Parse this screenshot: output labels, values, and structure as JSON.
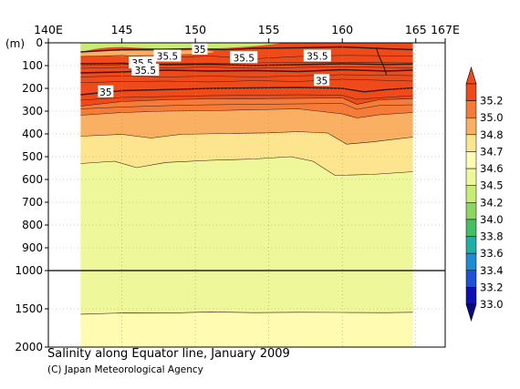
{
  "title": "Salinity along Equator line, January 2009",
  "credit": "(C) Japan Meteorological Agency",
  "chart_data": {
    "type": "heatmap",
    "x_ticks": [
      "140E",
      "145",
      "150",
      "155",
      "160",
      "165",
      "167E"
    ],
    "x_tick_values": [
      140,
      145,
      150,
      155,
      160,
      165,
      167
    ],
    "xlim": [
      140,
      167
    ],
    "data_xlim": [
      142.2,
      164.8
    ],
    "depth_unit": "(m)",
    "y_ticks_upper": [
      "0",
      "100",
      "200",
      "300",
      "400",
      "500",
      "600",
      "700",
      "800",
      "900",
      "1000"
    ],
    "y_ticks_lower": [
      "1500",
      "2000"
    ],
    "ylim_upper": [
      0,
      1000
    ],
    "ylim_lower": [
      1000,
      2000
    ],
    "grid": true,
    "colorbar_labels": [
      "35.2",
      "35.0",
      "34.8",
      "34.7",
      "34.6",
      "34.5",
      "34.2",
      "34.0",
      "33.8",
      "33.6",
      "33.4",
      "33.2",
      "33.0"
    ],
    "colorbar_colors": [
      "#ee4a1a",
      "#f47b38",
      "#f9b062",
      "#fde58f",
      "#fffbb0",
      "#eef79a",
      "#c9ec74",
      "#8ed65e",
      "#42c064",
      "#1eb0a7",
      "#1e8bd6",
      "#1d51d8",
      "#0f10b3"
    ],
    "contour_labels": [
      {
        "text": "35",
        "lon": 150.3,
        "depth": 28
      },
      {
        "text": "35.5",
        "lon": 148.1,
        "depth": 58
      },
      {
        "text": "35.5",
        "lon": 153.3,
        "depth": 65
      },
      {
        "text": "35.5",
        "lon": 158.3,
        "depth": 58
      },
      {
        "text": "35.5",
        "lon": 146.4,
        "depth": 88
      },
      {
        "text": "35.5",
        "lon": 146.6,
        "depth": 120
      },
      {
        "text": "35",
        "lon": 158.6,
        "depth": 165
      },
      {
        "text": "35",
        "lon": 143.9,
        "depth": 215
      }
    ],
    "boundaries": {
      "b35_2": [
        [
          142.2,
          100
        ],
        [
          145,
          96
        ],
        [
          148,
          92
        ],
        [
          151,
          90
        ],
        [
          154,
          88
        ],
        [
          157,
          86
        ],
        [
          160,
          85
        ],
        [
          163,
          87
        ],
        [
          164.8,
          88
        ]
      ],
      "b35_0": [
        [
          142.2,
          278
        ],
        [
          145,
          258
        ],
        [
          148,
          250
        ],
        [
          151,
          246
        ],
        [
          154,
          245
        ],
        [
          157,
          244
        ],
        [
          160,
          242
        ],
        [
          161,
          270
        ],
        [
          162.5,
          250
        ],
        [
          164.8,
          245
        ]
      ],
      "b34_8": [
        [
          142.2,
          318
        ],
        [
          145,
          306
        ],
        [
          148,
          300
        ],
        [
          151,
          298
        ],
        [
          154,
          294
        ],
        [
          157,
          290
        ],
        [
          160,
          312
        ],
        [
          161,
          330
        ],
        [
          162.5,
          316
        ],
        [
          164.8,
          306
        ]
      ],
      "b34_7": [
        [
          142.2,
          410
        ],
        [
          145,
          402
        ],
        [
          147,
          418
        ],
        [
          149,
          402
        ],
        [
          152,
          398
        ],
        [
          155,
          395
        ],
        [
          157,
          390
        ],
        [
          159,
          396
        ],
        [
          160.3,
          445
        ],
        [
          162,
          435
        ],
        [
          164.8,
          414
        ]
      ],
      "b34_6": [
        [
          142.2,
          530
        ],
        [
          144.5,
          520
        ],
        [
          146,
          548
        ],
        [
          148,
          525
        ],
        [
          151,
          516
        ],
        [
          154,
          510
        ],
        [
          156.5,
          500
        ],
        [
          158,
          520
        ],
        [
          159.5,
          582
        ],
        [
          162,
          578
        ],
        [
          164.8,
          566
        ]
      ],
      "b34_5": [
        [
          142.2,
          1570
        ],
        [
          145,
          1555
        ],
        [
          148,
          1556
        ],
        [
          151,
          1540
        ],
        [
          154,
          1550
        ],
        [
          157,
          1545
        ],
        [
          160,
          1548
        ],
        [
          163,
          1550
        ],
        [
          164.8,
          1545
        ]
      ]
    }
  }
}
